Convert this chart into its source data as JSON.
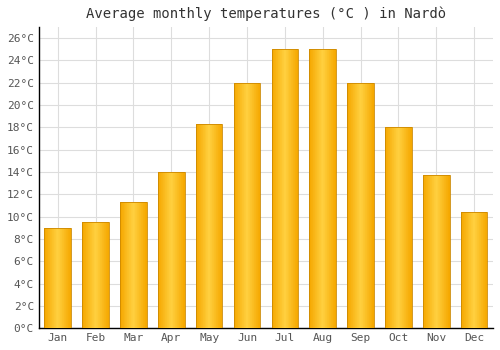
{
  "title": "Average monthly temperatures (°C ) in Nardò",
  "months": [
    "Jan",
    "Feb",
    "Mar",
    "Apr",
    "May",
    "Jun",
    "Jul",
    "Aug",
    "Sep",
    "Oct",
    "Nov",
    "Dec"
  ],
  "values": [
    9.0,
    9.5,
    11.3,
    14.0,
    18.3,
    22.0,
    25.0,
    25.0,
    22.0,
    18.0,
    13.7,
    10.4
  ],
  "bar_color_left": "#F5A800",
  "bar_color_center": "#FFD040",
  "bar_color_right": "#F5A800",
  "background_color": "#FFFFFF",
  "grid_color": "#DDDDDD",
  "ylim": [
    0,
    27
  ],
  "yticks": [
    0,
    2,
    4,
    6,
    8,
    10,
    12,
    14,
    16,
    18,
    20,
    22,
    24,
    26
  ],
  "ytick_labels": [
    "0°C",
    "2°C",
    "4°C",
    "6°C",
    "8°C",
    "10°C",
    "12°C",
    "14°C",
    "16°C",
    "18°C",
    "20°C",
    "22°C",
    "24°C",
    "26°C"
  ],
  "title_fontsize": 10,
  "tick_fontsize": 8,
  "font_family": "monospace"
}
